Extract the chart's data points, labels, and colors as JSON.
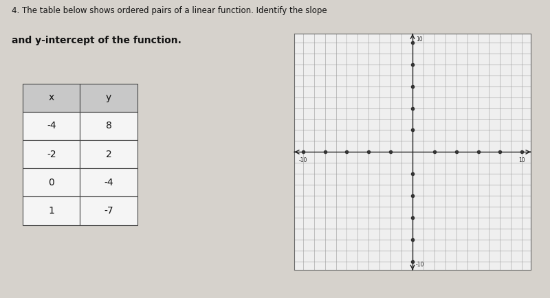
{
  "title_line1": "4. The table below shows ordered pairs of a linear function. Identify the slope",
  "title_line2": "and y-intercept of the function.",
  "table_headers": [
    "x",
    "y"
  ],
  "table_data": [
    [
      -4,
      8
    ],
    [
      -2,
      2
    ],
    [
      0,
      -4
    ],
    [
      1,
      -7
    ]
  ],
  "header_bg": "#c8c8c8",
  "cell_bg": "#f5f5f5",
  "table_border_color": "#444444",
  "grid_xlim": [
    -10,
    10
  ],
  "grid_ylim": [
    -10,
    10
  ],
  "grid_color": "#999999",
  "axis_color": "#222222",
  "page_bg": "#d6d2cc",
  "grid_bg": "#efefef",
  "tick_dot_color": "#333333",
  "label_color": "#222222",
  "label_10": "10",
  "label_neg10": "10"
}
